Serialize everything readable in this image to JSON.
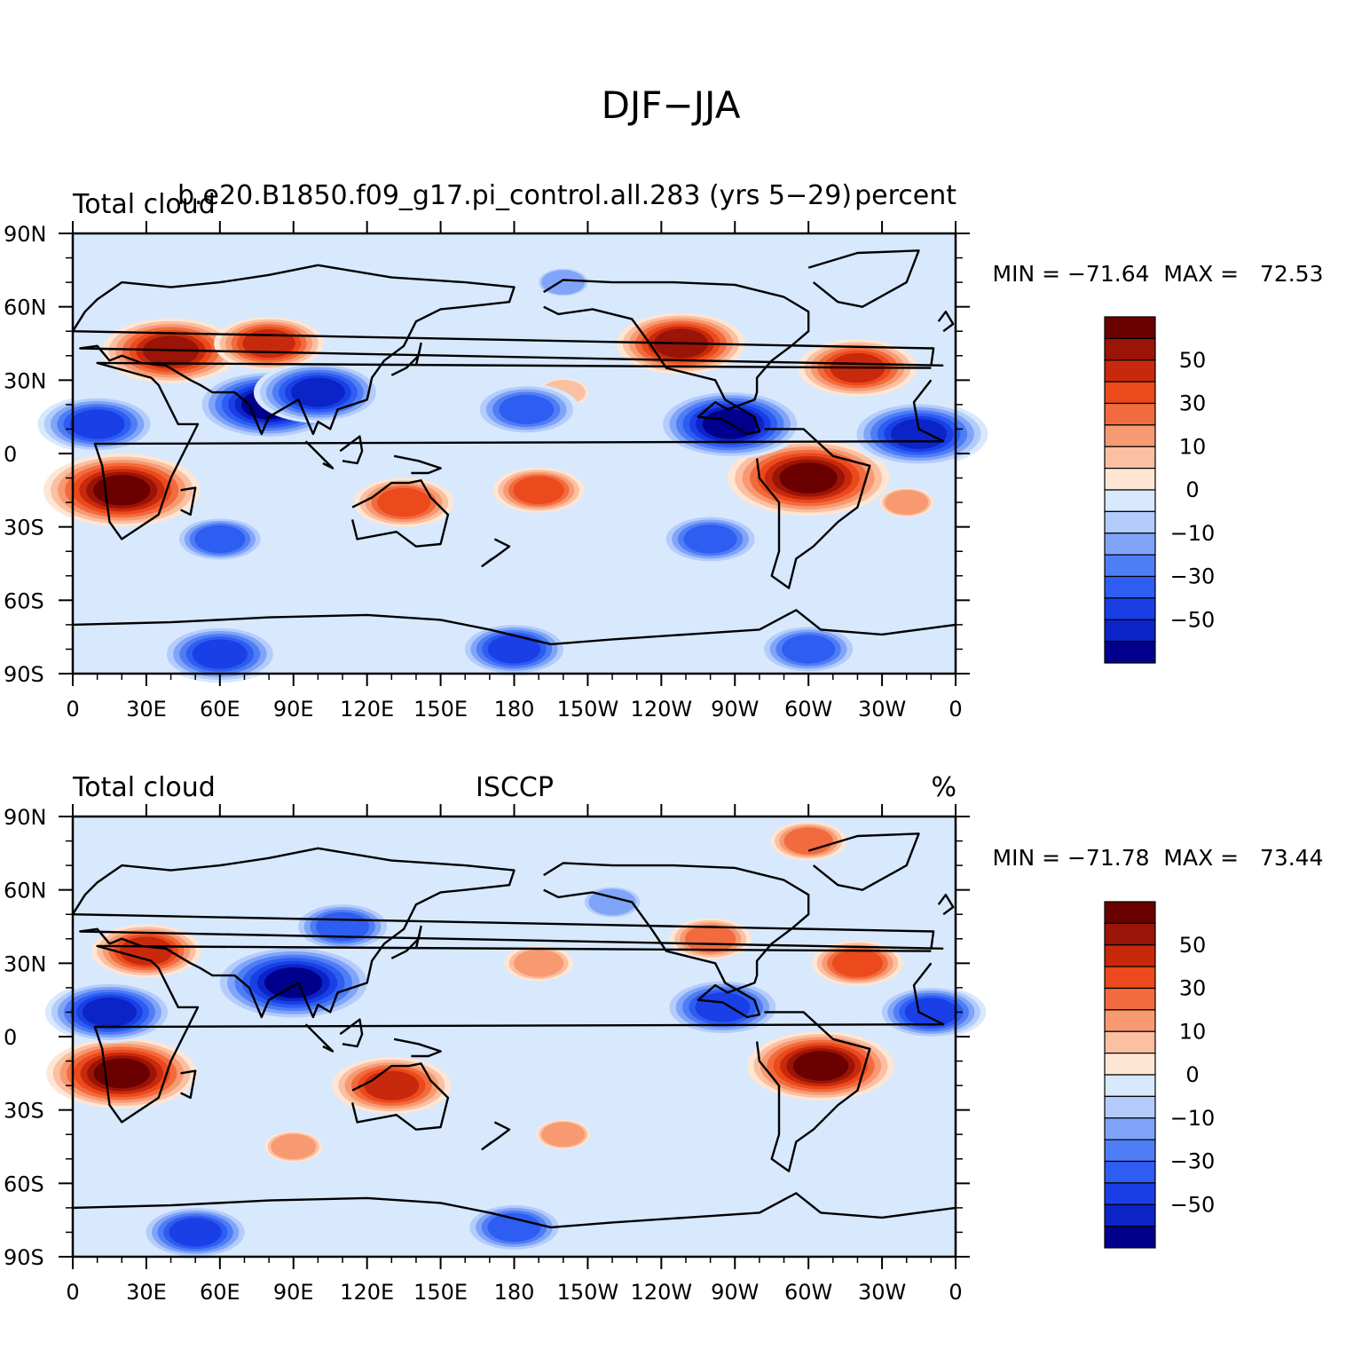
{
  "figure_title": "DJF−JJA",
  "colors": [
    "#00008c",
    "#0b24c8",
    "#1a3fe6",
    "#2e5df2",
    "#4f7df5",
    "#80a4f8",
    "#b3ccfb",
    "#d8e8fd",
    "#fde6d4",
    "#fbbfa1",
    "#f79a72",
    "#f26b3f",
    "#ec4a1c",
    "#c8290c",
    "#9a1407",
    "#6b0000"
  ],
  "chart_data": [
    {
      "type": "contour-map",
      "title_left": "Total cloud",
      "title_center": "b.e20.B1850.f09_g17.pi_control.all.283 (yrs 5−29)",
      "title_right": "percent",
      "stats": "MIN = −71.64  MAX =   72.53",
      "min": -71.64,
      "max": 72.53,
      "x_ticks": [
        "0",
        "30E",
        "60E",
        "90E",
        "120E",
        "150E",
        "180",
        "150W",
        "120W",
        "90W",
        "60W",
        "30W",
        "0"
      ],
      "y_ticks": [
        "90N",
        "60N",
        "30N",
        "0",
        "30S",
        "60S",
        "90S"
      ],
      "levels": [
        -70,
        -60,
        -50,
        -40,
        -30,
        -20,
        -10,
        -5,
        0,
        5,
        10,
        20,
        30,
        40,
        50,
        60
      ],
      "colorbar_labels": [
        "50",
        "30",
        "10",
        "0",
        "−10",
        "−30",
        "−50"
      ],
      "features": [
        {
          "lon": 20,
          "lat": -15,
          "value": 65
        },
        {
          "lon": 300,
          "lat": -10,
          "value": 68
        },
        {
          "lon": 135,
          "lat": -20,
          "value": 35
        },
        {
          "lon": 190,
          "lat": -15,
          "value": 30
        },
        {
          "lon": 40,
          "lat": 42,
          "value": 55
        },
        {
          "lon": 80,
          "lat": 45,
          "value": 40
        },
        {
          "lon": 248,
          "lat": 45,
          "value": 50
        },
        {
          "lon": 320,
          "lat": 35,
          "value": 45
        },
        {
          "lon": 200,
          "lat": 25,
          "value": 8
        },
        {
          "lon": 340,
          "lat": -20,
          "value": 10
        },
        {
          "lon": 80,
          "lat": 20,
          "value": -60
        },
        {
          "lon": 100,
          "lat": 25,
          "value": -50
        },
        {
          "lon": 268,
          "lat": 12,
          "value": -60
        },
        {
          "lon": 345,
          "lat": 8,
          "value": -55
        },
        {
          "lon": 10,
          "lat": 12,
          "value": -45
        },
        {
          "lon": 185,
          "lat": 18,
          "value": -38
        },
        {
          "lon": 260,
          "lat": -35,
          "value": -35
        },
        {
          "lon": 200,
          "lat": 70,
          "value": -10
        },
        {
          "lon": 60,
          "lat": -35,
          "value": -30
        },
        {
          "lon": 180,
          "lat": -80,
          "value": -40
        },
        {
          "lon": 60,
          "lat": -82,
          "value": -45
        },
        {
          "lon": 300,
          "lat": -80,
          "value": -35
        }
      ]
    },
    {
      "type": "contour-map",
      "title_left": "Total cloud",
      "title_center": "ISCCP",
      "title_right": "%",
      "stats": "MIN = −71.78  MAX =   73.44",
      "min": -71.78,
      "max": 73.44,
      "x_ticks": [
        "0",
        "30E",
        "60E",
        "90E",
        "120E",
        "150E",
        "180",
        "150W",
        "120W",
        "90W",
        "60W",
        "30W",
        "0"
      ],
      "y_ticks": [
        "90N",
        "60N",
        "30N",
        "0",
        "30S",
        "60S",
        "90S"
      ],
      "levels": [
        -70,
        -60,
        -50,
        -40,
        -30,
        -20,
        -10,
        -5,
        0,
        5,
        10,
        20,
        30,
        40,
        50,
        60
      ],
      "colorbar_labels": [
        "50",
        "30",
        "10",
        "0",
        "−10",
        "−30",
        "−50"
      ],
      "features": [
        {
          "lon": 20,
          "lat": -15,
          "value": 62
        },
        {
          "lon": 305,
          "lat": -12,
          "value": 60
        },
        {
          "lon": 130,
          "lat": -20,
          "value": 45
        },
        {
          "lon": 30,
          "lat": 35,
          "value": 40
        },
        {
          "lon": 260,
          "lat": 40,
          "value": 25
        },
        {
          "lon": 320,
          "lat": 30,
          "value": 30
        },
        {
          "lon": 190,
          "lat": 30,
          "value": 18
        },
        {
          "lon": 300,
          "lat": 80,
          "value": 22
        },
        {
          "lon": 90,
          "lat": 22,
          "value": -68
        },
        {
          "lon": 110,
          "lat": 45,
          "value": -35
        },
        {
          "lon": 15,
          "lat": 10,
          "value": -50
        },
        {
          "lon": 265,
          "lat": 12,
          "value": -45
        },
        {
          "lon": 350,
          "lat": 10,
          "value": -40
        },
        {
          "lon": 220,
          "lat": 55,
          "value": -15
        },
        {
          "lon": 200,
          "lat": -40,
          "value": 10
        },
        {
          "lon": 90,
          "lat": -45,
          "value": 12
        },
        {
          "lon": 180,
          "lat": -78,
          "value": -35
        },
        {
          "lon": 50,
          "lat": -80,
          "value": -40
        }
      ]
    }
  ]
}
